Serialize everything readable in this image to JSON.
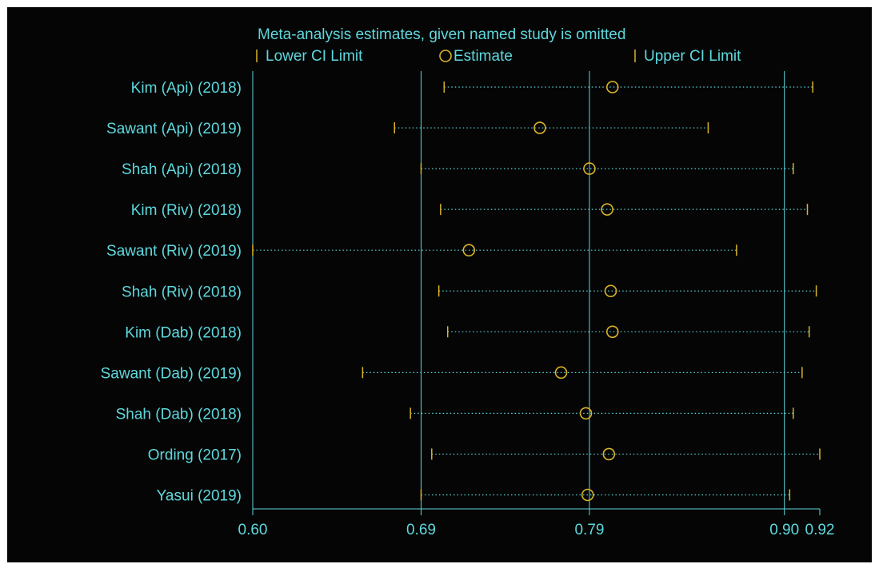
{
  "chart_data": {
    "type": "forest-influence",
    "title": "Meta-analysis estimates, given named study is omitted",
    "legend": {
      "lower": "Lower CI Limit",
      "estimate": "Estimate",
      "upper": "Upper CI Limit",
      "placement": "top"
    },
    "xlim": [
      0.6,
      0.92
    ],
    "xticks": [
      {
        "value": 0.6,
        "label": "0.60"
      },
      {
        "value": 0.695,
        "label": "0.69"
      },
      {
        "value": 0.79,
        "label": "0.79"
      },
      {
        "value": 0.9,
        "label": "0.90"
      },
      {
        "value": 0.92,
        "label": "0.92"
      }
    ],
    "reference_lines": [
      0.695,
      0.79,
      0.9
    ],
    "studies": [
      {
        "name": "Kim (Api) (2018)",
        "lower": 0.708,
        "estimate": 0.803,
        "upper": 0.916
      },
      {
        "name": "Sawant (Api) (2019)",
        "lower": 0.68,
        "estimate": 0.762,
        "upper": 0.857
      },
      {
        "name": "Shah (Api) (2018)",
        "lower": 0.695,
        "estimate": 0.79,
        "upper": 0.905
      },
      {
        "name": "Kim (Riv) (2018)",
        "lower": 0.706,
        "estimate": 0.8,
        "upper": 0.913
      },
      {
        "name": "Sawant (Riv) (2019)",
        "lower": 0.6,
        "estimate": 0.722,
        "upper": 0.873
      },
      {
        "name": "Shah (Riv) (2018)",
        "lower": 0.705,
        "estimate": 0.802,
        "upper": 0.918
      },
      {
        "name": "Kim (Dab) (2018)",
        "lower": 0.71,
        "estimate": 0.803,
        "upper": 0.914
      },
      {
        "name": "Sawant (Dab) (2019)",
        "lower": 0.662,
        "estimate": 0.774,
        "upper": 0.91
      },
      {
        "name": "Shah (Dab) (2018)",
        "lower": 0.689,
        "estimate": 0.788,
        "upper": 0.905
      },
      {
        "name": "Ording  (2017)",
        "lower": 0.701,
        "estimate": 0.801,
        "upper": 0.92
      },
      {
        "name": "Yasui  (2019)",
        "lower": 0.695,
        "estimate": 0.789,
        "upper": 0.903
      }
    ],
    "grid": false
  },
  "colors": {
    "background": "#050505",
    "text": "#5ed8dd",
    "axis": "#5ed8dd",
    "ci_marker": "#d9b428",
    "estimate": "#d9b428",
    "ci_line": "#5ed8dd"
  }
}
